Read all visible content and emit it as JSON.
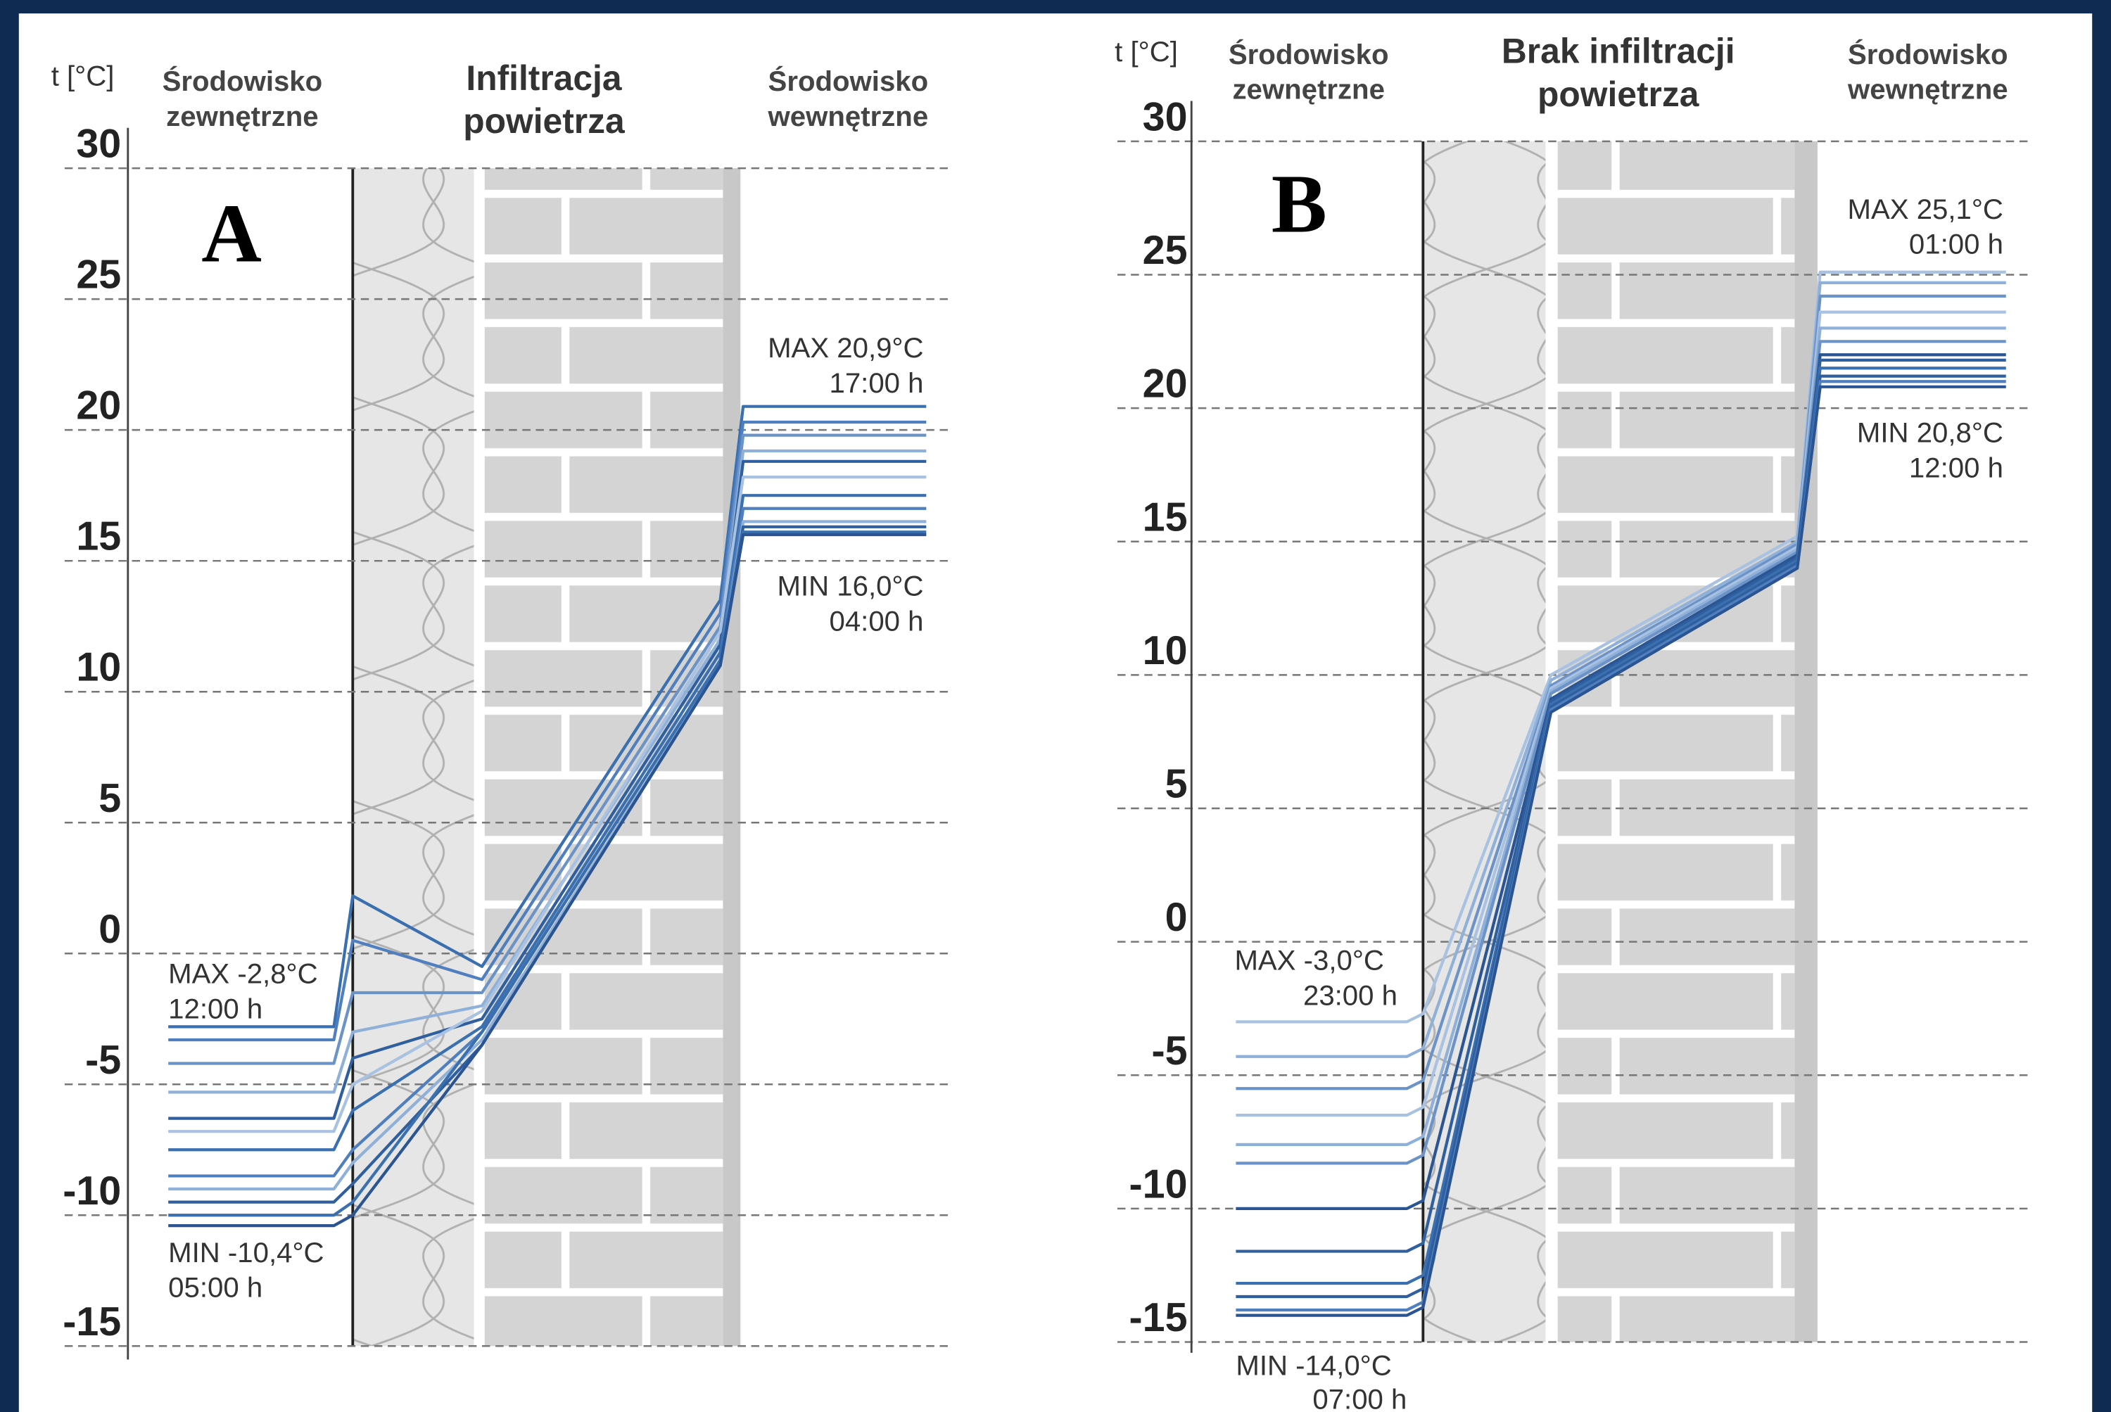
{
  "chart_data": [
    {
      "type": "line",
      "panel": "A",
      "y_label": "t [°C]",
      "outside_label": [
        "Środowisko",
        "zewnętrzne"
      ],
      "title": [
        "Infiltracja",
        "powietrza"
      ],
      "inside_label": [
        "Środowisko",
        "wewnętrzne"
      ],
      "ylim": [
        -15,
        30
      ],
      "yticks": [
        30,
        25,
        20,
        15,
        10,
        5,
        0,
        -5,
        -10,
        -15
      ],
      "grid": true,
      "categories": [
        null,
        null,
        null,
        null,
        null,
        null,
        null
      ],
      "series": [
        {
          "color": "#3a6fb0",
          "values": [
            -2.8,
            -2.8,
            2.2,
            -0.5,
            13.5,
            20.9,
            20.9
          ]
        },
        {
          "color": "#4f7fbf",
          "values": [
            -3.3,
            -3.3,
            0.5,
            -1.0,
            13.0,
            20.3,
            20.3
          ]
        },
        {
          "color": "#6b93c8",
          "values": [
            -4.2,
            -4.2,
            -1.5,
            -1.5,
            12.5,
            19.8,
            19.8
          ]
        },
        {
          "color": "#8fb0d8",
          "values": [
            -5.3,
            -5.3,
            -3.0,
            -2.0,
            12.0,
            19.2,
            19.2
          ]
        },
        {
          "color": "#2f5f9e",
          "values": [
            -6.3,
            -6.3,
            -4.0,
            -2.5,
            11.8,
            18.8,
            18.8
          ]
        },
        {
          "color": "#a9c2e2",
          "values": [
            -6.8,
            -6.8,
            -5.0,
            -2.2,
            12.3,
            18.2,
            18.2
          ]
        },
        {
          "color": "#3a6fb0",
          "values": [
            -7.5,
            -7.5,
            -6.0,
            -2.8,
            11.5,
            17.5,
            17.5
          ]
        },
        {
          "color": "#4f7fbf",
          "values": [
            -8.5,
            -8.5,
            -7.5,
            -3.0,
            11.2,
            17.0,
            17.0
          ]
        },
        {
          "color": "#8fb0d8",
          "values": [
            -9.0,
            -9.0,
            -8.0,
            -3.3,
            11.0,
            16.5,
            16.5
          ]
        },
        {
          "color": "#2f5f9e",
          "values": [
            -9.5,
            -9.5,
            -8.8,
            -3.5,
            11.0,
            16.3,
            16.3
          ]
        },
        {
          "color": "#3a6fb0",
          "values": [
            -10.0,
            -10.0,
            -9.5,
            -3.0,
            11.2,
            16.1,
            16.1
          ]
        },
        {
          "color": "#2a5592",
          "values": [
            -10.4,
            -10.4,
            -10.0,
            -3.5,
            11.0,
            16.0,
            16.0
          ]
        }
      ],
      "annotations": [
        [
          "MAX -2,8°C",
          "12:00 h"
        ],
        [
          "MIN -10,4°C",
          "05:00 h"
        ],
        [
          "MAX 20,9°C",
          "17:00 h"
        ],
        [
          "MIN 16,0°C",
          "04:00 h"
        ]
      ]
    },
    {
      "type": "line",
      "panel": "B",
      "y_label": "t [°C]",
      "outside_label": [
        "Środowisko",
        "zewnętrzne"
      ],
      "title": [
        "Brak infiltracji",
        "powietrza"
      ],
      "inside_label": [
        "Środowisko",
        "wewnętrzne"
      ],
      "ylim": [
        -15,
        30
      ],
      "yticks": [
        30,
        25,
        20,
        15,
        10,
        5,
        0,
        -5,
        -10,
        -15
      ],
      "grid": true,
      "categories": [
        null,
        null,
        null,
        null,
        null,
        null,
        null
      ],
      "series": [
        {
          "color": "#a9c2e2",
          "values": [
            -3.0,
            -3.0,
            -2.7,
            10.0,
            15.2,
            25.1,
            25.1
          ]
        },
        {
          "color": "#8fb0d8",
          "values": [
            -4.3,
            -4.3,
            -4.0,
            9.8,
            15.0,
            24.7,
            24.7
          ]
        },
        {
          "color": "#6b93c8",
          "values": [
            -5.5,
            -5.5,
            -5.2,
            9.6,
            14.9,
            24.2,
            24.2
          ]
        },
        {
          "color": "#a9c2e2",
          "values": [
            -6.5,
            -6.5,
            -6.2,
            9.5,
            14.8,
            23.6,
            23.6
          ]
        },
        {
          "color": "#8fb0d8",
          "values": [
            -7.6,
            -7.6,
            -7.3,
            9.4,
            14.7,
            23.0,
            23.0
          ]
        },
        {
          "color": "#6b93c8",
          "values": [
            -8.3,
            -8.3,
            -8.0,
            9.3,
            14.6,
            22.5,
            22.5
          ]
        },
        {
          "color": "#2a5592",
          "values": [
            -10.0,
            -10.0,
            -9.7,
            9.1,
            14.5,
            22.0,
            22.0
          ]
        },
        {
          "color": "#2f5f9e",
          "values": [
            -11.6,
            -11.6,
            -11.3,
            9.0,
            14.4,
            21.8,
            21.8
          ]
        },
        {
          "color": "#3a6fb0",
          "values": [
            -12.8,
            -12.8,
            -12.5,
            8.9,
            14.3,
            21.5,
            21.5
          ]
        },
        {
          "color": "#2f5f9e",
          "values": [
            -13.3,
            -13.3,
            -13.0,
            8.8,
            14.2,
            21.2,
            21.2
          ]
        },
        {
          "color": "#4f7fbf",
          "values": [
            -13.8,
            -13.8,
            -13.5,
            8.7,
            14.1,
            21.0,
            21.0
          ]
        },
        {
          "color": "#2a5592",
          "values": [
            -14.0,
            -14.0,
            -13.7,
            8.6,
            14.0,
            20.8,
            20.8
          ]
        }
      ],
      "annotations": [
        [
          "MAX -3,0°C",
          "23:00 h"
        ],
        [
          "MIN -14,0°C",
          "07:00 h"
        ],
        [
          "MAX 25,1°C",
          "01:00 h"
        ],
        [
          "MIN 20,8°C",
          "12:00 h"
        ]
      ]
    }
  ]
}
